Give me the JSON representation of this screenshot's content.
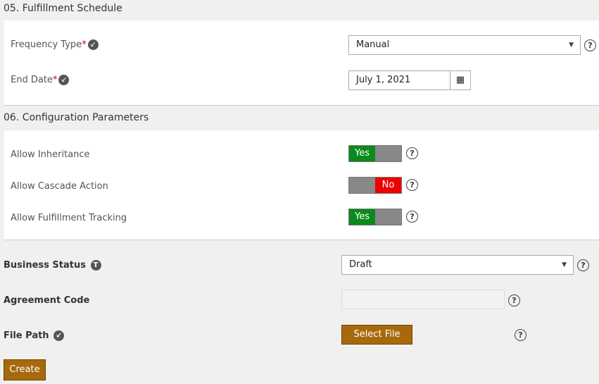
{
  "sections": [
    {
      "title": "05. Fulfillment Schedule"
    },
    {
      "title": "06. Configuration Parameters"
    }
  ],
  "frequency": {
    "label": "Frequency Type",
    "required": "*",
    "value": "Manual"
  },
  "end_date": {
    "label": "End Date",
    "required": "*",
    "value": "July 1, 2021"
  },
  "config": [
    {
      "label": "Allow Inheritance",
      "on": true,
      "text": "Yes"
    },
    {
      "label": "Allow Cascade Action",
      "on": false,
      "text": "No"
    },
    {
      "label": "Allow Fulfillment Tracking",
      "on": true,
      "text": "Yes"
    }
  ],
  "business_status": {
    "label": "Business Status",
    "badge": "T",
    "value": "Draft"
  },
  "agreement_code": {
    "label": "Agreement Code",
    "value": ""
  },
  "file_path": {
    "label": "File Path",
    "button": "Select File"
  },
  "create_label": "Create",
  "help": "?",
  "colors": {
    "yes": "#0a8a1a",
    "no": "#e00000",
    "accent": "#a7690c"
  }
}
